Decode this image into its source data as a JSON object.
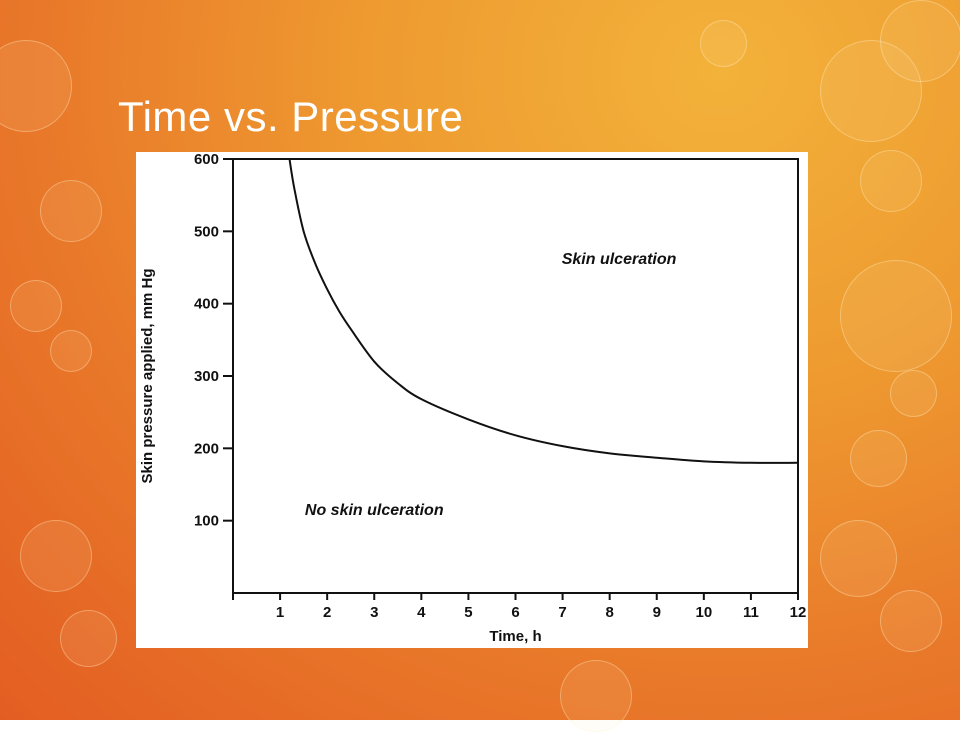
{
  "slide": {
    "title": "Time vs. Pressure"
  },
  "colors": {
    "background_accent": "#ee9a30",
    "title_text": "#ffffff",
    "plot_background": "#ffffff",
    "plot_ink": "#111111"
  },
  "chart_data": {
    "type": "line",
    "title": "",
    "xlabel": "Time, h",
    "ylabel": "Skin pressure applied, mm Hg",
    "xlim": [
      0,
      12
    ],
    "ylim": [
      0,
      600
    ],
    "x_ticks": [
      "1",
      "2",
      "3",
      "4",
      "5",
      "6",
      "7",
      "8",
      "9",
      "10",
      "11",
      "12"
    ],
    "y_ticks": [
      "100",
      "200",
      "300",
      "400",
      "500",
      "600"
    ],
    "grid": false,
    "series": [
      {
        "x": [
          1.2,
          1.3,
          1.5,
          1.75,
          2,
          2.25,
          2.5,
          3,
          3.5,
          4,
          5,
          6,
          7,
          8,
          9,
          10,
          11,
          12
        ],
        "y": [
          600,
          560,
          500,
          455,
          420,
          390,
          365,
          320,
          290,
          268,
          240,
          218,
          203,
          193,
          187,
          182,
          180,
          180
        ]
      }
    ],
    "annotations": [
      {
        "text": "Skin ulceration",
        "x": 8.2,
        "y": 455
      },
      {
        "text": "No skin ulceration",
        "x": 3.0,
        "y": 108
      }
    ]
  }
}
